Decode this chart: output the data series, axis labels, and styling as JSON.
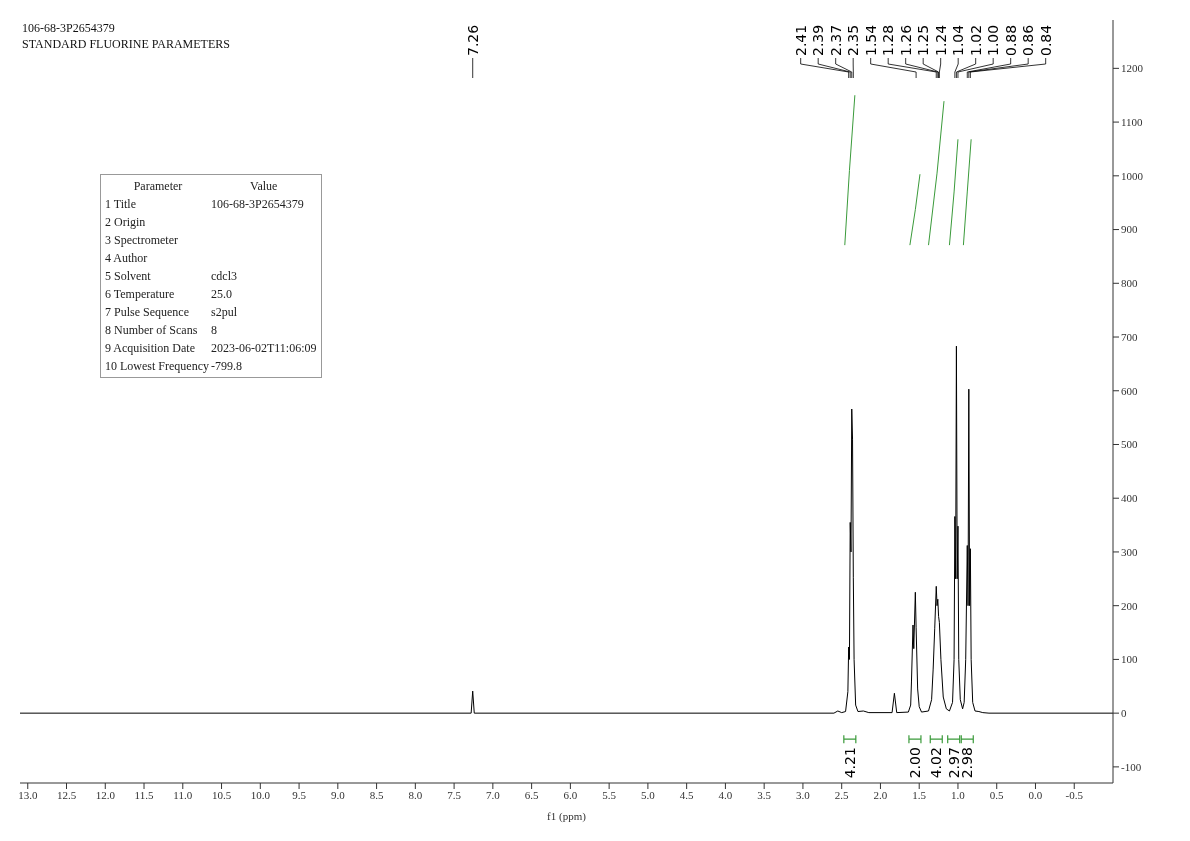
{
  "chart_data": [
    {
      "type": "line",
      "title": "106-68-3P2654379",
      "subtitle": "STANDARD FLUORINE PARAMETERS",
      "xlabel": "f1 (ppm)",
      "xlim": [
        13.1,
        -1.0
      ],
      "xticks": [
        {
          "value": 13,
          "label": "13.0"
        },
        {
          "value": 12.5,
          "label": "12.5"
        },
        {
          "value": 12,
          "label": "12.0"
        },
        {
          "value": 11.5,
          "label": "11.5"
        },
        {
          "value": 11,
          "label": "11.0"
        },
        {
          "value": 10.5,
          "label": "10.5"
        },
        {
          "value": 10,
          "label": "10.0"
        },
        {
          "value": 9.5,
          "label": "9.5"
        },
        {
          "value": 9,
          "label": "9.0"
        },
        {
          "value": 8.5,
          "label": "8.5"
        },
        {
          "value": 8,
          "label": "8.0"
        },
        {
          "value": 7.5,
          "label": "7.5"
        },
        {
          "value": 7,
          "label": "7.0"
        },
        {
          "value": 6.5,
          "label": "6.5"
        },
        {
          "value": 6,
          "label": "6.0"
        },
        {
          "value": 5.5,
          "label": "5.5"
        },
        {
          "value": 5,
          "label": "5.0"
        },
        {
          "value": 4.5,
          "label": "4.5"
        },
        {
          "value": 4,
          "label": "4.0"
        },
        {
          "value": 3.5,
          "label": "3.5"
        },
        {
          "value": 3,
          "label": "3.0"
        },
        {
          "value": 2.5,
          "label": "2.5"
        },
        {
          "value": 2,
          "label": "2.0"
        },
        {
          "value": 1.5,
          "label": "1.5"
        },
        {
          "value": 1,
          "label": "1.0"
        },
        {
          "value": 0.5,
          "label": "0.5"
        },
        {
          "value": 0,
          "label": "0.0"
        },
        {
          "value": -0.5,
          "label": "-0.5"
        }
      ],
      "ylim": [
        -130,
        1290
      ],
      "yticks": [
        -100,
        0,
        100,
        200,
        300,
        400,
        500,
        600,
        700,
        800,
        900,
        1000,
        1100,
        1200
      ],
      "series": [
        {
          "color": "#000000",
          "x": [
            13.1,
            7.28,
            7.26,
            7.24,
            2.6,
            2.55,
            2.5,
            2.45,
            2.42,
            2.41,
            2.4,
            2.39,
            2.38,
            2.37,
            2.36,
            2.35,
            2.34,
            2.32,
            2.29,
            2.22,
            2.15,
            1.85,
            1.82,
            1.79,
            1.64,
            1.61,
            1.6,
            1.58,
            1.57,
            1.55,
            1.54,
            1.52,
            1.5,
            1.47,
            1.38,
            1.34,
            1.32,
            1.3,
            1.28,
            1.27,
            1.26,
            1.25,
            1.24,
            1.22,
            1.19,
            1.15,
            1.11,
            1.07,
            1.05,
            1.04,
            1.03,
            1.02,
            1.01,
            1.0,
            0.99,
            0.97,
            0.94,
            0.92,
            0.9,
            0.88,
            0.87,
            0.86,
            0.85,
            0.84,
            0.83,
            0.81,
            0.78,
            0.73,
            0.68,
            0.6,
            -1.0
          ],
          "values": [
            0,
            0,
            41,
            0,
            0,
            4,
            1,
            3,
            40,
            123,
            100,
            355,
            300,
            566,
            510,
            253,
            100,
            15,
            3,
            4,
            1,
            1,
            37,
            1,
            2,
            15,
            58,
            164,
            120,
            225,
            160,
            45,
            12,
            2,
            4,
            25,
            82,
            157,
            236,
            200,
            212,
            180,
            169,
            100,
            30,
            8,
            4,
            20,
            100,
            366,
            250,
            683,
            250,
            348,
            100,
            25,
            8,
            20,
            100,
            312,
            200,
            603,
            200,
            306,
            100,
            20,
            4,
            3,
            1,
            0,
            0
          ]
        },
        {
          "type": "line",
          "color": "#3a9a3a",
          "x": [
            2.46,
            2.4,
            2.33
          ],
          "values": [
            871,
            1010,
            1150
          ]
        },
        {
          "type": "line",
          "color": "#3a9a3a",
          "x": [
            1.62,
            1.55,
            1.49
          ],
          "values": [
            871,
            937,
            1003
          ]
        },
        {
          "type": "line",
          "color": "#3a9a3a",
          "x": [
            1.38,
            1.27,
            1.18
          ],
          "values": [
            871,
            1005,
            1139
          ]
        },
        {
          "type": "line",
          "color": "#3a9a3a",
          "x": [
            1.11,
            1.05,
            1.0
          ],
          "values": [
            871,
            970,
            1068
          ]
        },
        {
          "type": "line",
          "color": "#3a9a3a",
          "x": [
            0.93,
            0.88,
            0.83
          ],
          "values": [
            871,
            970,
            1068
          ]
        }
      ],
      "annotations": [
        {
          "text": "7.26",
          "x": 7.26
        },
        {
          "text": "2.41",
          "x": 2.41
        },
        {
          "text": "2.39",
          "x": 2.39
        },
        {
          "text": "2.37",
          "x": 2.37
        },
        {
          "text": "2.35",
          "x": 2.35
        },
        {
          "text": "1.54",
          "x": 1.54
        },
        {
          "text": "1.28",
          "x": 1.28
        },
        {
          "text": "1.26",
          "x": 1.26
        },
        {
          "text": "1.25",
          "x": 1.25
        },
        {
          "text": "1.24",
          "x": 1.24
        },
        {
          "text": "1.04",
          "x": 1.04
        },
        {
          "text": "1.02",
          "x": 1.02
        },
        {
          "text": "1.00",
          "x": 1.0
        },
        {
          "text": "0.88",
          "x": 0.88
        },
        {
          "text": "0.86",
          "x": 0.86
        },
        {
          "text": "0.84",
          "x": 0.84
        },
        "4.21",
        "2.00",
        "4.02",
        "2.97",
        "2.98"
      ]
    },
    {
      "type": "other",
      "annotations": [
        "Parameter",
        "Value",
        "1 Title",
        "106-68-3P2654379",
        "2 Origin",
        null,
        "3 Spectrometer",
        null,
        "4 Author",
        null,
        "5 Solvent",
        "cdcl3",
        "6 Temperature",
        "25.0",
        "7 Pulse Sequence",
        "s2pul",
        "8 Number of Scans",
        "8",
        "9 Acquisition Date",
        "2023-06-02T11:06:09",
        "10 Lowest Frequency",
        "-799.8"
      ]
    }
  ]
}
